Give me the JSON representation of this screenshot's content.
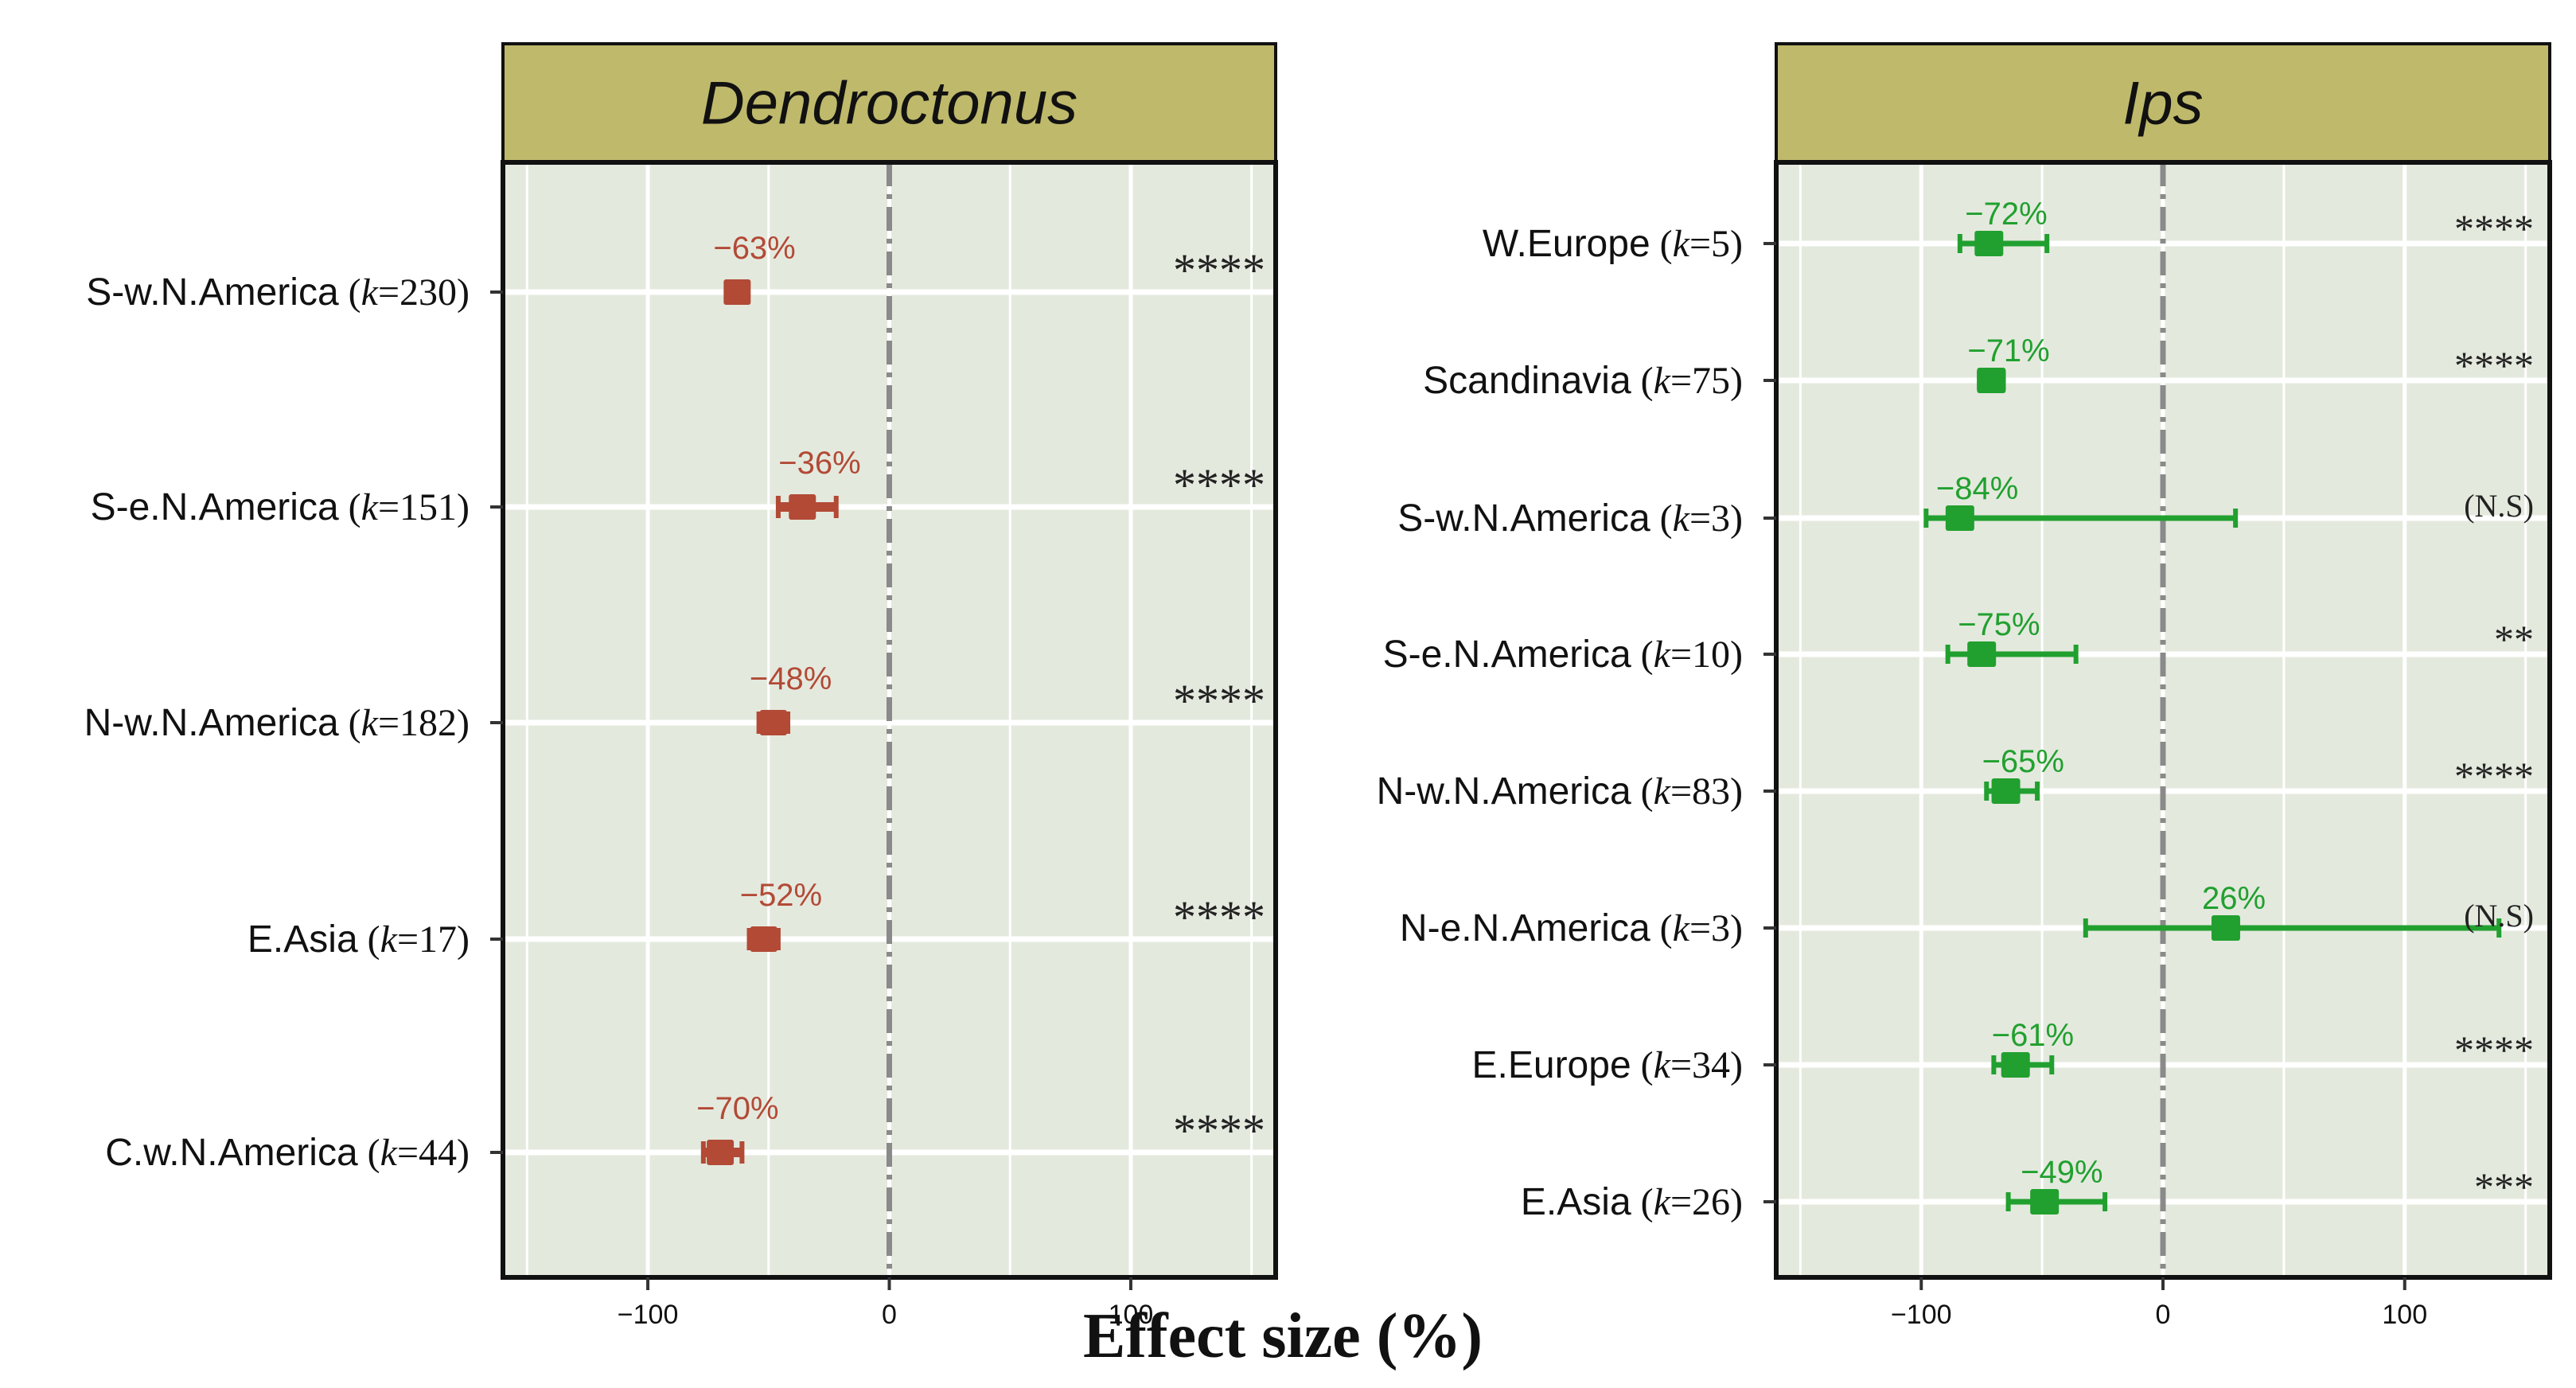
{
  "figure": {
    "xlabel": "Effect size (%)"
  },
  "colors": {
    "header_fill": "#bfb96b",
    "panel_bg": "#e4e9de",
    "grid": "#ffffff",
    "zero_line": "#8a8a8a",
    "dendroctonus": "#b24a36",
    "ips": "#21a02f",
    "text": "#111111"
  },
  "chart_data": [
    {
      "type": "forest",
      "title": "Dendroctonus",
      "title_italic": true,
      "xlim": [
        -160,
        160
      ],
      "xticks": [
        -100,
        0,
        100
      ],
      "xtick_labels": [
        "−100",
        "0",
        "100"
      ],
      "color_key": "dendroctonus",
      "rows": [
        {
          "region": "S-w.N.America",
          "k": "230",
          "effect": -63,
          "ci": [
            -66,
            -60
          ],
          "label": "−63%",
          "sig": "****"
        },
        {
          "region": "S-e.N.America",
          "k": "151",
          "effect": -36,
          "ci": [
            -46,
            -22
          ],
          "label": "−36%",
          "sig": "****"
        },
        {
          "region": "N-w.N.America",
          "k": "182",
          "effect": -48,
          "ci": [
            -54,
            -42
          ],
          "label": "−48%",
          "sig": "****"
        },
        {
          "region": "E.Asia",
          "k": "17",
          "effect": -52,
          "ci": [
            -58,
            -46
          ],
          "label": "−52%",
          "sig": "****"
        },
        {
          "region": "C.w.N.America",
          "k": "44",
          "effect": -70,
          "ci": [
            -77,
            -61
          ],
          "label": "−70%",
          "sig": "****"
        }
      ]
    },
    {
      "type": "forest",
      "title": "Ips",
      "title_italic": true,
      "xlim": [
        -160,
        160
      ],
      "xticks": [
        -100,
        0,
        100
      ],
      "xtick_labels": [
        "−100",
        "0",
        "100"
      ],
      "color_key": "ips",
      "rows": [
        {
          "region": "W.Europe",
          "k": "5",
          "effect": -72,
          "ci": [
            -84,
            -48
          ],
          "label": "−72%",
          "sig": "****"
        },
        {
          "region": "Scandinavia",
          "k": "75",
          "effect": -71,
          "ci": [
            -76,
            -66
          ],
          "label": "−71%",
          "sig": "****"
        },
        {
          "region": "S-w.N.America",
          "k": "3",
          "effect": -84,
          "ci": [
            -98,
            30
          ],
          "label": "−84%",
          "sig": "(N.S)"
        },
        {
          "region": "S-e.N.America",
          "k": "10",
          "effect": -75,
          "ci": [
            -89,
            -36
          ],
          "label": "−75%",
          "sig": "**"
        },
        {
          "region": "N-w.N.America",
          "k": "83",
          "effect": -65,
          "ci": [
            -73,
            -52
          ],
          "label": "−65%",
          "sig": "****"
        },
        {
          "region": "N-e.N.America",
          "k": "3",
          "effect": 26,
          "ci": [
            -32,
            139
          ],
          "label": "26%",
          "sig": "(N.S)"
        },
        {
          "region": "E.Europe",
          "k": "34",
          "effect": -61,
          "ci": [
            -70,
            -46
          ],
          "label": "−61%",
          "sig": "****"
        },
        {
          "region": "E.Asia",
          "k": "26",
          "effect": -49,
          "ci": [
            -64,
            -24
          ],
          "label": "−49%",
          "sig": "***"
        }
      ]
    }
  ]
}
